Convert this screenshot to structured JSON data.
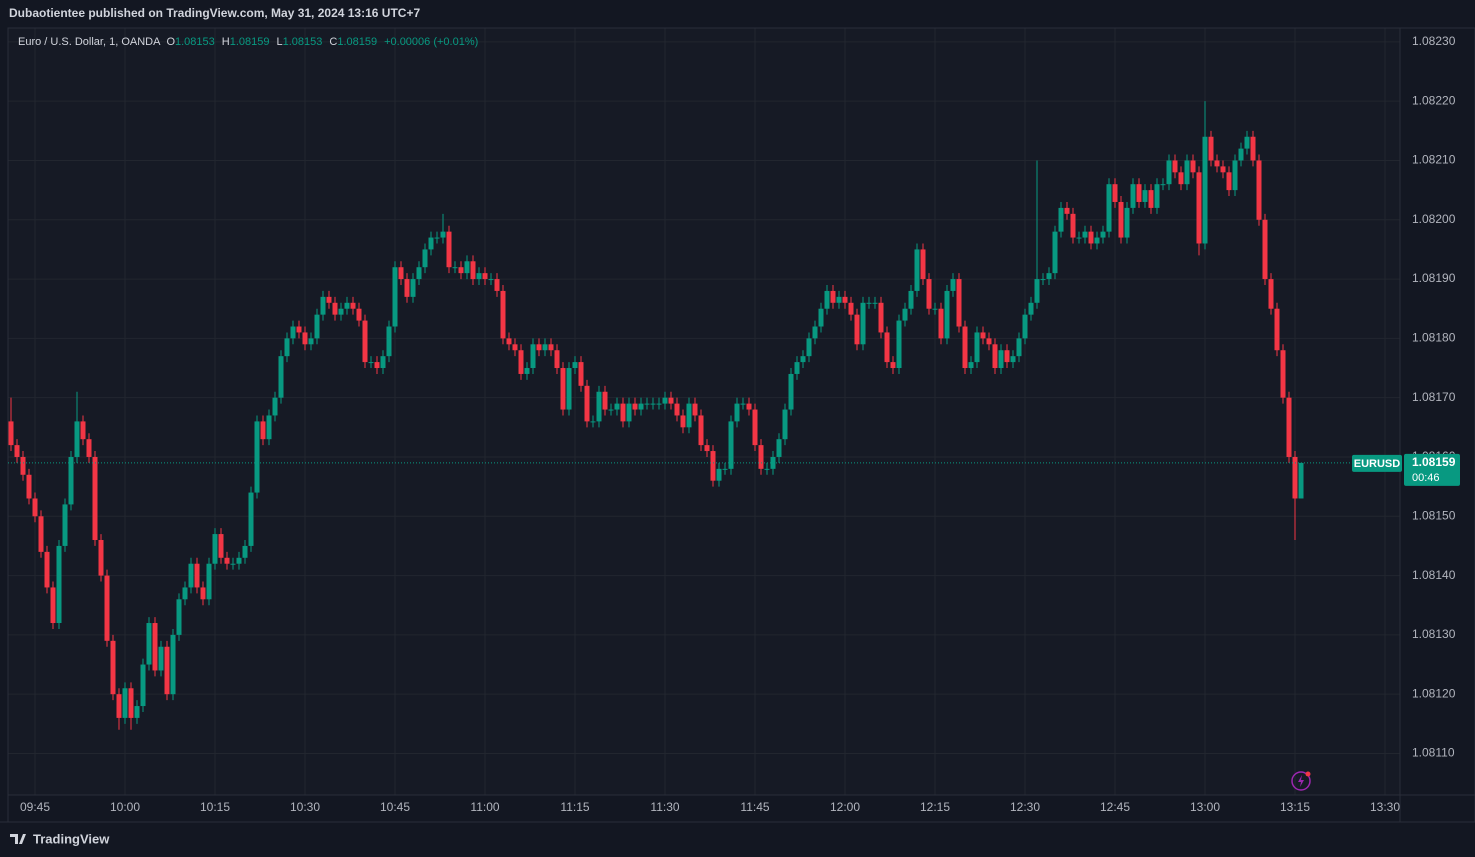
{
  "header": {
    "publisher": "Dubaotientee published on TradingView.com, May 31, 2024 13:16 UTC+7"
  },
  "chart_data": {
    "type": "candlestick",
    "title": "Euro / U.S. Dollar, 1, OANDA",
    "x": [
      "09:41",
      "09:42",
      "09:43",
      "09:44",
      "09:45",
      "09:46",
      "09:47",
      "09:48",
      "09:49",
      "09:50",
      "09:51",
      "09:52",
      "09:53",
      "09:54",
      "09:55",
      "09:56",
      "09:57",
      "09:58",
      "09:59",
      "10:00",
      "10:01",
      "10:02",
      "10:03",
      "10:04",
      "10:05",
      "10:06",
      "10:07",
      "10:08",
      "10:09",
      "10:10",
      "10:11",
      "10:12",
      "10:13",
      "10:14",
      "10:15",
      "10:16",
      "10:17",
      "10:18",
      "10:19",
      "10:20",
      "10:21",
      "10:22",
      "10:23",
      "10:24",
      "10:25",
      "10:26",
      "10:27",
      "10:28",
      "10:29",
      "10:30",
      "10:31",
      "10:32",
      "10:33",
      "10:34",
      "10:35",
      "10:36",
      "10:37",
      "10:38",
      "10:39",
      "10:40",
      "10:41",
      "10:42",
      "10:43",
      "10:44",
      "10:45",
      "10:46",
      "10:47",
      "10:48",
      "10:49",
      "10:50",
      "10:51",
      "10:52",
      "10:53",
      "10:54",
      "10:55",
      "10:56",
      "10:57",
      "10:58",
      "10:59",
      "11:00",
      "11:01",
      "11:02",
      "11:03",
      "11:04",
      "11:05",
      "11:06",
      "11:07",
      "11:08",
      "11:09",
      "11:10",
      "11:11",
      "11:12",
      "11:13",
      "11:14",
      "11:15",
      "11:16",
      "11:17",
      "11:18",
      "11:19",
      "11:20",
      "11:21",
      "11:22",
      "11:23",
      "11:24",
      "11:25",
      "11:26",
      "11:27",
      "11:28",
      "11:29",
      "11:30",
      "11:31",
      "11:32",
      "11:33",
      "11:34",
      "11:35",
      "11:36",
      "11:37",
      "11:38",
      "11:39",
      "11:40",
      "11:41",
      "11:42",
      "11:43",
      "11:44",
      "11:45",
      "11:46",
      "11:47",
      "11:48",
      "11:49",
      "11:50",
      "11:51",
      "11:52",
      "11:53",
      "11:54",
      "11:55",
      "11:56",
      "11:57",
      "11:58",
      "11:59",
      "12:00",
      "12:01",
      "12:02",
      "12:03",
      "12:04",
      "12:05",
      "12:06",
      "12:07",
      "12:08",
      "12:09",
      "12:10",
      "12:11",
      "12:12",
      "12:13",
      "12:14",
      "12:15",
      "12:16",
      "12:17",
      "12:18",
      "12:19",
      "12:20",
      "12:21",
      "12:22",
      "12:23",
      "12:24",
      "12:25",
      "12:26",
      "12:27",
      "12:28",
      "12:29",
      "12:30",
      "12:31",
      "12:32",
      "12:33",
      "12:34",
      "12:35",
      "12:36",
      "12:37",
      "12:38",
      "12:39",
      "12:40",
      "12:41",
      "12:42",
      "12:43",
      "12:44",
      "12:45",
      "12:46",
      "12:47",
      "12:48",
      "12:49",
      "12:50",
      "12:51",
      "12:52",
      "12:53",
      "12:54",
      "12:55",
      "12:56",
      "12:57",
      "12:58",
      "12:59",
      "13:00",
      "13:01",
      "13:02",
      "13:03",
      "13:04",
      "13:05",
      "13:06",
      "13:07",
      "13:08",
      "13:09",
      "13:10",
      "13:11",
      "13:12",
      "13:13",
      "13:14",
      "13:15",
      "13:16"
    ],
    "open": [
      1.08166,
      1.08162,
      1.0816,
      1.08157,
      1.08153,
      1.0815,
      1.08144,
      1.08138,
      1.08132,
      1.08145,
      1.08152,
      1.0816,
      1.08166,
      1.08163,
      1.0816,
      1.08146,
      1.0814,
      1.08129,
      1.0812,
      1.08116,
      1.08121,
      1.08116,
      1.08118,
      1.08125,
      1.08132,
      1.08124,
      1.08128,
      1.0812,
      1.0813,
      1.08136,
      1.08138,
      1.08142,
      1.08138,
      1.08136,
      1.08142,
      1.08147,
      1.08143,
      1.08142,
      1.08142,
      1.08143,
      1.08145,
      1.08154,
      1.08166,
      1.08163,
      1.08167,
      1.0817,
      1.08177,
      1.0818,
      1.08182,
      1.08181,
      1.08179,
      1.0818,
      1.08184,
      1.08187,
      1.08186,
      1.08184,
      1.08185,
      1.08186,
      1.08185,
      1.08183,
      1.08176,
      1.08176,
      1.08175,
      1.08177,
      1.08182,
      1.08192,
      1.0819,
      1.08187,
      1.0819,
      1.08192,
      1.08195,
      1.08197,
      1.08197,
      1.08198,
      1.08192,
      1.08192,
      1.08191,
      1.08193,
      1.0819,
      1.08191,
      1.0819,
      1.0819,
      1.08188,
      1.0818,
      1.08179,
      1.08178,
      1.08174,
      1.08175,
      1.08179,
      1.08178,
      1.08179,
      1.08178,
      1.08175,
      1.08168,
      1.08175,
      1.08176,
      1.08172,
      1.08166,
      1.08166,
      1.08171,
      1.08168,
      1.08168,
      1.08169,
      1.08166,
      1.08169,
      1.08168,
      1.08169,
      1.08169,
      1.08169,
      1.08169,
      1.0817,
      1.08169,
      1.08167,
      1.08165,
      1.08169,
      1.08167,
      1.08162,
      1.08161,
      1.08156,
      1.08158,
      1.08158,
      1.08166,
      1.08169,
      1.08169,
      1.08168,
      1.08162,
      1.08158,
      1.08158,
      1.0816,
      1.08163,
      1.08168,
      1.08174,
      1.08176,
      1.08177,
      1.0818,
      1.08182,
      1.08185,
      1.08188,
      1.08186,
      1.08187,
      1.08186,
      1.08184,
      1.08179,
      1.08186,
      1.08186,
      1.08186,
      1.08181,
      1.08176,
      1.08175,
      1.08183,
      1.08185,
      1.08188,
      1.08195,
      1.0819,
      1.08185,
      1.08185,
      1.0818,
      1.08188,
      1.0819,
      1.08182,
      1.08175,
      1.08176,
      1.08181,
      1.0818,
      1.08179,
      1.08175,
      1.08178,
      1.08176,
      1.08177,
      1.0818,
      1.08184,
      1.08186,
      1.0819,
      1.0819,
      1.08191,
      1.08198,
      1.08202,
      1.08201,
      1.08197,
      1.08197,
      1.08198,
      1.08196,
      1.08197,
      1.08198,
      1.08206,
      1.08203,
      1.08197,
      1.08202,
      1.08206,
      1.08203,
      1.08205,
      1.08202,
      1.08206,
      1.08206,
      1.0821,
      1.08208,
      1.08206,
      1.0821,
      1.08208,
      1.08196,
      1.08214,
      1.0821,
      1.08209,
      1.08208,
      1.08205,
      1.0821,
      1.08212,
      1.08214,
      1.0821,
      1.082,
      1.0819,
      1.08185,
      1.08178,
      1.0817,
      1.0816,
      1.08153
    ],
    "high": [
      1.0817,
      1.08163,
      1.08161,
      1.08158,
      1.08154,
      1.08151,
      1.08145,
      1.08139,
      1.08146,
      1.08153,
      1.08161,
      1.08171,
      1.08167,
      1.08164,
      1.08161,
      1.08147,
      1.08141,
      1.0813,
      1.08121,
      1.08122,
      1.08122,
      1.08119,
      1.08126,
      1.08133,
      1.08133,
      1.08129,
      1.08129,
      1.08131,
      1.08137,
      1.08139,
      1.08143,
      1.08143,
      1.08139,
      1.08143,
      1.08148,
      1.08148,
      1.08144,
      1.08143,
      1.08144,
      1.08146,
      1.08155,
      1.08167,
      1.08167,
      1.08168,
      1.08171,
      1.08178,
      1.08181,
      1.08183,
      1.08183,
      1.08182,
      1.08181,
      1.08185,
      1.08188,
      1.08188,
      1.08187,
      1.08186,
      1.08187,
      1.08187,
      1.08186,
      1.08184,
      1.08177,
      1.08177,
      1.08178,
      1.08183,
      1.08193,
      1.08193,
      1.08191,
      1.08191,
      1.08193,
      1.08196,
      1.08198,
      1.08198,
      1.08201,
      1.08199,
      1.08193,
      1.08193,
      1.08194,
      1.08194,
      1.08192,
      1.08192,
      1.08191,
      1.08191,
      1.08189,
      1.08181,
      1.0818,
      1.08179,
      1.08176,
      1.0818,
      1.0818,
      1.0818,
      1.0818,
      1.08179,
      1.08176,
      1.08176,
      1.08177,
      1.08177,
      1.08173,
      1.08167,
      1.08172,
      1.08172,
      1.08169,
      1.0817,
      1.0817,
      1.0817,
      1.0817,
      1.0817,
      1.0817,
      1.0817,
      1.0817,
      1.08171,
      1.08171,
      1.0817,
      1.08168,
      1.0817,
      1.0817,
      1.08168,
      1.08163,
      1.08162,
      1.08159,
      1.08159,
      1.08167,
      1.0817,
      1.0817,
      1.0817,
      1.08169,
      1.08163,
      1.08159,
      1.08161,
      1.08164,
      1.08169,
      1.08175,
      1.08177,
      1.08178,
      1.08181,
      1.08183,
      1.08186,
      1.08189,
      1.08189,
      1.08188,
      1.08188,
      1.08187,
      1.08185,
      1.08187,
      1.08187,
      1.08187,
      1.08187,
      1.08182,
      1.08177,
      1.08184,
      1.08186,
      1.08189,
      1.08196,
      1.08196,
      1.08191,
      1.08186,
      1.08186,
      1.08189,
      1.08191,
      1.08191,
      1.08183,
      1.08177,
      1.08182,
      1.08182,
      1.08181,
      1.0818,
      1.08179,
      1.08179,
      1.08178,
      1.08181,
      1.08185,
      1.08187,
      1.0821,
      1.08191,
      1.08192,
      1.08199,
      1.08203,
      1.08203,
      1.08202,
      1.08198,
      1.08199,
      1.08199,
      1.08198,
      1.08199,
      1.08207,
      1.08207,
      1.08204,
      1.08203,
      1.08207,
      1.08207,
      1.08206,
      1.08206,
      1.08207,
      1.08207,
      1.08211,
      1.08211,
      1.08209,
      1.08211,
      1.08211,
      1.08209,
      1.0822,
      1.08215,
      1.08211,
      1.0821,
      1.08209,
      1.08211,
      1.08213,
      1.08215,
      1.08215,
      1.08211,
      1.08201,
      1.08191,
      1.08186,
      1.08179,
      1.08171,
      1.08161,
      1.08159
    ],
    "low": [
      1.08161,
      1.08159,
      1.08156,
      1.08152,
      1.08149,
      1.08143,
      1.08137,
      1.08131,
      1.08131,
      1.08144,
      1.08151,
      1.08159,
      1.08162,
      1.08159,
      1.08145,
      1.08139,
      1.08128,
      1.08119,
      1.08114,
      1.08115,
      1.08114,
      1.08115,
      1.08117,
      1.08124,
      1.08123,
      1.08123,
      1.08119,
      1.08119,
      1.08129,
      1.08135,
      1.08137,
      1.08137,
      1.08135,
      1.08135,
      1.08141,
      1.08142,
      1.08141,
      1.08141,
      1.08141,
      1.08142,
      1.08144,
      1.08153,
      1.08162,
      1.08162,
      1.08166,
      1.08169,
      1.08176,
      1.08179,
      1.0818,
      1.08178,
      1.08178,
      1.08179,
      1.08183,
      1.08185,
      1.08183,
      1.08183,
      1.08184,
      1.08184,
      1.08182,
      1.08175,
      1.08175,
      1.08174,
      1.08174,
      1.08176,
      1.08181,
      1.08189,
      1.08186,
      1.08186,
      1.08189,
      1.08191,
      1.08194,
      1.08196,
      1.08196,
      1.08191,
      1.08191,
      1.0819,
      1.0819,
      1.08189,
      1.08189,
      1.08189,
      1.08189,
      1.08187,
      1.08179,
      1.08178,
      1.08177,
      1.08173,
      1.08173,
      1.08174,
      1.08177,
      1.08177,
      1.08177,
      1.08174,
      1.08167,
      1.08167,
      1.08174,
      1.08171,
      1.08165,
      1.08165,
      1.08165,
      1.08167,
      1.08167,
      1.08167,
      1.08165,
      1.08165,
      1.08167,
      1.08167,
      1.08168,
      1.08168,
      1.08168,
      1.08168,
      1.08168,
      1.08166,
      1.08164,
      1.08164,
      1.08166,
      1.08161,
      1.0816,
      1.08155,
      1.08155,
      1.08157,
      1.08157,
      1.08165,
      1.08168,
      1.08167,
      1.08161,
      1.08157,
      1.08157,
      1.08157,
      1.08159,
      1.08162,
      1.08167,
      1.08173,
      1.08175,
      1.08176,
      1.08179,
      1.08181,
      1.08184,
      1.08185,
      1.08185,
      1.08185,
      1.08183,
      1.08178,
      1.08178,
      1.08185,
      1.08185,
      1.0818,
      1.08175,
      1.08174,
      1.08174,
      1.08182,
      1.08184,
      1.08187,
      1.08189,
      1.08184,
      1.08184,
      1.08179,
      1.08179,
      1.08187,
      1.08181,
      1.08174,
      1.08174,
      1.08175,
      1.08179,
      1.08178,
      1.08174,
      1.08174,
      1.08175,
      1.08175,
      1.08176,
      1.08179,
      1.08183,
      1.08185,
      1.08189,
      1.08189,
      1.0819,
      1.08197,
      1.082,
      1.08196,
      1.08196,
      1.08196,
      1.08195,
      1.08195,
      1.08196,
      1.08197,
      1.08202,
      1.08196,
      1.08196,
      1.08201,
      1.08202,
      1.08202,
      1.08201,
      1.08201,
      1.08205,
      1.08205,
      1.08207,
      1.08205,
      1.08205,
      1.08207,
      1.08194,
      1.08195,
      1.08209,
      1.08208,
      1.08207,
      1.08204,
      1.08204,
      1.08209,
      1.08211,
      1.08209,
      1.08199,
      1.08189,
      1.08184,
      1.08177,
      1.08169,
      1.08159,
      1.08146,
      1.08153
    ],
    "close": [
      1.08162,
      1.0816,
      1.08157,
      1.08153,
      1.0815,
      1.08144,
      1.08138,
      1.08132,
      1.08145,
      1.08152,
      1.0816,
      1.08166,
      1.08163,
      1.0816,
      1.08146,
      1.0814,
      1.08129,
      1.0812,
      1.08116,
      1.08121,
      1.08116,
      1.08118,
      1.08125,
      1.08132,
      1.08124,
      1.08128,
      1.0812,
      1.0813,
      1.08136,
      1.08138,
      1.08142,
      1.08138,
      1.08136,
      1.08142,
      1.08147,
      1.08143,
      1.08142,
      1.08142,
      1.08143,
      1.08145,
      1.08154,
      1.08166,
      1.08163,
      1.08167,
      1.0817,
      1.08177,
      1.0818,
      1.08182,
      1.08181,
      1.08179,
      1.0818,
      1.08184,
      1.08187,
      1.08186,
      1.08184,
      1.08185,
      1.08186,
      1.08185,
      1.08183,
      1.08176,
      1.08176,
      1.08175,
      1.08177,
      1.08182,
      1.08192,
      1.0819,
      1.08187,
      1.0819,
      1.08192,
      1.08195,
      1.08197,
      1.08197,
      1.08198,
      1.08192,
      1.08192,
      1.08191,
      1.08193,
      1.0819,
      1.08191,
      1.0819,
      1.0819,
      1.08188,
      1.0818,
      1.08179,
      1.08178,
      1.08174,
      1.08175,
      1.08179,
      1.08178,
      1.08179,
      1.08178,
      1.08175,
      1.08168,
      1.08175,
      1.08176,
      1.08172,
      1.08166,
      1.08166,
      1.08171,
      1.08168,
      1.08168,
      1.08169,
      1.08166,
      1.08169,
      1.08168,
      1.08169,
      1.08169,
      1.08169,
      1.08169,
      1.0817,
      1.08169,
      1.08167,
      1.08165,
      1.08169,
      1.08167,
      1.08162,
      1.08161,
      1.08156,
      1.08158,
      1.08158,
      1.08166,
      1.08169,
      1.08169,
      1.08168,
      1.08162,
      1.08158,
      1.08158,
      1.0816,
      1.08163,
      1.08168,
      1.08174,
      1.08176,
      1.08177,
      1.0818,
      1.08182,
      1.08185,
      1.08188,
      1.08186,
      1.08187,
      1.08186,
      1.08184,
      1.08179,
      1.08186,
      1.08186,
      1.08186,
      1.08181,
      1.08176,
      1.08175,
      1.08183,
      1.08185,
      1.08188,
      1.08195,
      1.0819,
      1.08185,
      1.08185,
      1.0818,
      1.08188,
      1.0819,
      1.08182,
      1.08175,
      1.08176,
      1.08181,
      1.0818,
      1.08179,
      1.08175,
      1.08178,
      1.08176,
      1.08177,
      1.0818,
      1.08184,
      1.08186,
      1.0819,
      1.0819,
      1.08191,
      1.08198,
      1.08202,
      1.08201,
      1.08197,
      1.08197,
      1.08198,
      1.08196,
      1.08197,
      1.08198,
      1.08206,
      1.08203,
      1.08197,
      1.08202,
      1.08206,
      1.08203,
      1.08205,
      1.08202,
      1.08206,
      1.08206,
      1.0821,
      1.08208,
      1.08206,
      1.0821,
      1.08208,
      1.08196,
      1.08214,
      1.0821,
      1.08209,
      1.08208,
      1.08205,
      1.0821,
      1.08212,
      1.08214,
      1.0821,
      1.082,
      1.0819,
      1.08185,
      1.08178,
      1.0817,
      1.0816,
      1.08153,
      1.08159
    ],
    "xlim": [
      "09:40",
      "13:32"
    ],
    "xticks": [
      "09:45",
      "10:00",
      "10:15",
      "10:30",
      "10:45",
      "11:00",
      "11:15",
      "11:30",
      "11:45",
      "12:00",
      "12:15",
      "12:30",
      "12:45",
      "13:00",
      "13:15",
      "13:30"
    ],
    "ylim": [
      1.08103,
      1.08232
    ],
    "yticks": [
      {
        "value": 1.0811,
        "label": "1.08110"
      },
      {
        "value": 1.0812,
        "label": "1.08120"
      },
      {
        "value": 1.0813,
        "label": "1.08130"
      },
      {
        "value": 1.0814,
        "label": "1.08140"
      },
      {
        "value": 1.0815,
        "label": "1.08150"
      },
      {
        "value": 1.0816,
        "label": "1.08160"
      },
      {
        "value": 1.0817,
        "label": "1.08170"
      },
      {
        "value": 1.0818,
        "label": "1.08180"
      },
      {
        "value": 1.0819,
        "label": "1.08190"
      },
      {
        "value": 1.082,
        "label": "1.08200"
      },
      {
        "value": 1.0821,
        "label": "1.08210"
      },
      {
        "value": 1.0822,
        "label": "1.08220"
      },
      {
        "value": 1.0823,
        "label": "1.08230"
      }
    ],
    "grid": true,
    "up_color": "#089981",
    "down_color": "#f23645",
    "legend_labels": {
      "open": "O",
      "high": "H",
      "low": "L",
      "close": "C"
    },
    "change_label": "+0.00006 (+0.01%)",
    "symbol": "EURUSD",
    "countdown": "00:46"
  },
  "footer": {
    "brand": "TradingView"
  }
}
